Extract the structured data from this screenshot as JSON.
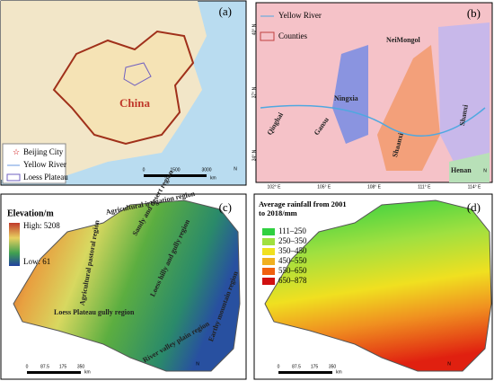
{
  "graticule": {
    "lon": [
      "102° E",
      "105° E",
      "108° E",
      "111° E",
      "114° E"
    ],
    "lat": [
      "40° N",
      "37° N",
      "34° N"
    ]
  },
  "panel_a": {
    "label": "(a)",
    "country": "China",
    "legend": [
      "Beijing City",
      "Yellow River",
      "Loess Plateau"
    ],
    "scale": [
      "0",
      "1500",
      "3000"
    ],
    "unit": "km",
    "north": "N"
  },
  "panel_b": {
    "label": "(b)",
    "legend": [
      "Yellow River",
      "Counties"
    ],
    "provinces": [
      "NeiMongol",
      "Ningxia",
      "Qinghai",
      "Gansu",
      "Shaanxi",
      "Shanxi",
      "Henan"
    ],
    "north": "N"
  },
  "panel_c": {
    "label": "(c)",
    "legend_title": "Elevation/m",
    "high": "High: 5208",
    "low": "Low: 61",
    "regions": [
      "Agricultural irrigation region",
      "Sandy and desert region",
      "Agricultural pastoral region",
      "Loess hilly and gully region",
      "Earthy mountain region",
      "Loess Plateau gully region",
      "River valley plain region"
    ],
    "scale": [
      "0",
      "87.5",
      "175",
      "350"
    ],
    "unit": "km",
    "north": "N"
  },
  "panel_d": {
    "label": "(d)",
    "legend_title": "Average rainfall from 2001 to 2018/mm",
    "classes": [
      "111–250",
      "250–350",
      "350–450",
      "450–550",
      "550–650",
      "650–878"
    ],
    "scale": [
      "0",
      "87.5",
      "175",
      "350"
    ],
    "unit": "km",
    "north": "N"
  }
}
